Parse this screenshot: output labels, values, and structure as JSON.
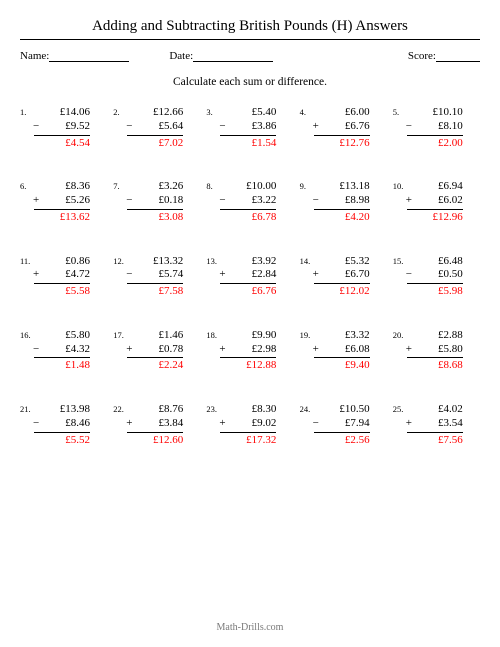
{
  "title": "Adding and Subtracting British Pounds (H) Answers",
  "labels": {
    "name": "Name:",
    "date": "Date:",
    "score": "Score:"
  },
  "instruction": "Calculate each sum or difference.",
  "footer": "Math-Drills.com",
  "answer_color": "#ff0000",
  "problems": [
    {
      "n": "1.",
      "a": "£14.06",
      "op": "−",
      "b": "£9.52",
      "ans": "£4.54"
    },
    {
      "n": "2.",
      "a": "£12.66",
      "op": "−",
      "b": "£5.64",
      "ans": "£7.02"
    },
    {
      "n": "3.",
      "a": "£5.40",
      "op": "−",
      "b": "£3.86",
      "ans": "£1.54"
    },
    {
      "n": "4.",
      "a": "£6.00",
      "op": "+",
      "b": "£6.76",
      "ans": "£12.76"
    },
    {
      "n": "5.",
      "a": "£10.10",
      "op": "−",
      "b": "£8.10",
      "ans": "£2.00"
    },
    {
      "n": "6.",
      "a": "£8.36",
      "op": "+",
      "b": "£5.26",
      "ans": "£13.62"
    },
    {
      "n": "7.",
      "a": "£3.26",
      "op": "−",
      "b": "£0.18",
      "ans": "£3.08"
    },
    {
      "n": "8.",
      "a": "£10.00",
      "op": "−",
      "b": "£3.22",
      "ans": "£6.78"
    },
    {
      "n": "9.",
      "a": "£13.18",
      "op": "−",
      "b": "£8.98",
      "ans": "£4.20"
    },
    {
      "n": "10.",
      "a": "£6.94",
      "op": "+",
      "b": "£6.02",
      "ans": "£12.96"
    },
    {
      "n": "11.",
      "a": "£0.86",
      "op": "+",
      "b": "£4.72",
      "ans": "£5.58"
    },
    {
      "n": "12.",
      "a": "£13.32",
      "op": "−",
      "b": "£5.74",
      "ans": "£7.58"
    },
    {
      "n": "13.",
      "a": "£3.92",
      "op": "+",
      "b": "£2.84",
      "ans": "£6.76"
    },
    {
      "n": "14.",
      "a": "£5.32",
      "op": "+",
      "b": "£6.70",
      "ans": "£12.02"
    },
    {
      "n": "15.",
      "a": "£6.48",
      "op": "−",
      "b": "£0.50",
      "ans": "£5.98"
    },
    {
      "n": "16.",
      "a": "£5.80",
      "op": "−",
      "b": "£4.32",
      "ans": "£1.48"
    },
    {
      "n": "17.",
      "a": "£1.46",
      "op": "+",
      "b": "£0.78",
      "ans": "£2.24"
    },
    {
      "n": "18.",
      "a": "£9.90",
      "op": "+",
      "b": "£2.98",
      "ans": "£12.88"
    },
    {
      "n": "19.",
      "a": "£3.32",
      "op": "+",
      "b": "£6.08",
      "ans": "£9.40"
    },
    {
      "n": "20.",
      "a": "£2.88",
      "op": "+",
      "b": "£5.80",
      "ans": "£8.68"
    },
    {
      "n": "21.",
      "a": "£13.98",
      "op": "−",
      "b": "£8.46",
      "ans": "£5.52"
    },
    {
      "n": "22.",
      "a": "£8.76",
      "op": "+",
      "b": "£3.84",
      "ans": "£12.60"
    },
    {
      "n": "23.",
      "a": "£8.30",
      "op": "+",
      "b": "£9.02",
      "ans": "£17.32"
    },
    {
      "n": "24.",
      "a": "£10.50",
      "op": "−",
      "b": "£7.94",
      "ans": "£2.56"
    },
    {
      "n": "25.",
      "a": "£4.02",
      "op": "+",
      "b": "£3.54",
      "ans": "£7.56"
    }
  ]
}
